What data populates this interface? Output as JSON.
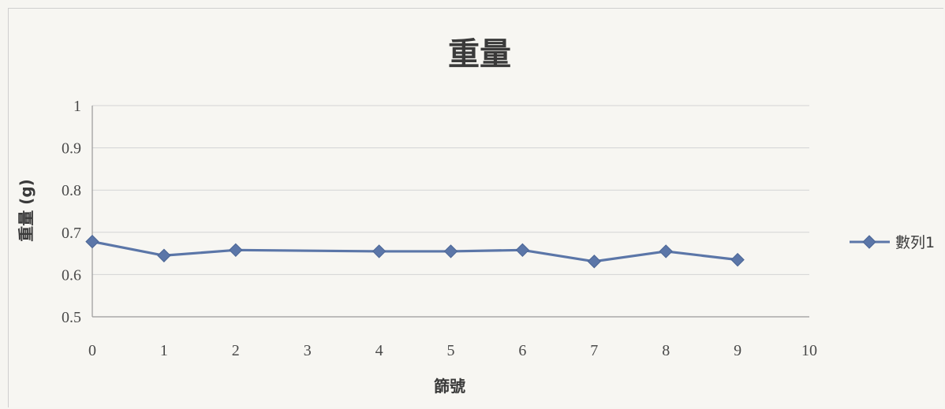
{
  "chart_data": {
    "type": "line",
    "title": "重量",
    "xlabel": "篩號",
    "ylabel": "重量 (g)",
    "xlim": [
      0,
      10
    ],
    "ylim": [
      0.5,
      1
    ],
    "x_ticks": [
      "0",
      "1",
      "2",
      "3",
      "4",
      "5",
      "6",
      "7",
      "8",
      "9",
      "10"
    ],
    "y_ticks": [
      "0.5",
      "0.6",
      "0.7",
      "0.8",
      "0.9",
      "1"
    ],
    "grid": true,
    "legend_position": "right",
    "series": [
      {
        "name": "數列1",
        "color": "#5b76a8",
        "marker": "diamond",
        "x": [
          0,
          1,
          2,
          4,
          5,
          6,
          7,
          8,
          9
        ],
        "y": [
          0.678,
          0.645,
          0.658,
          0.655,
          0.655,
          0.658,
          0.631,
          0.655,
          0.635
        ]
      }
    ]
  }
}
